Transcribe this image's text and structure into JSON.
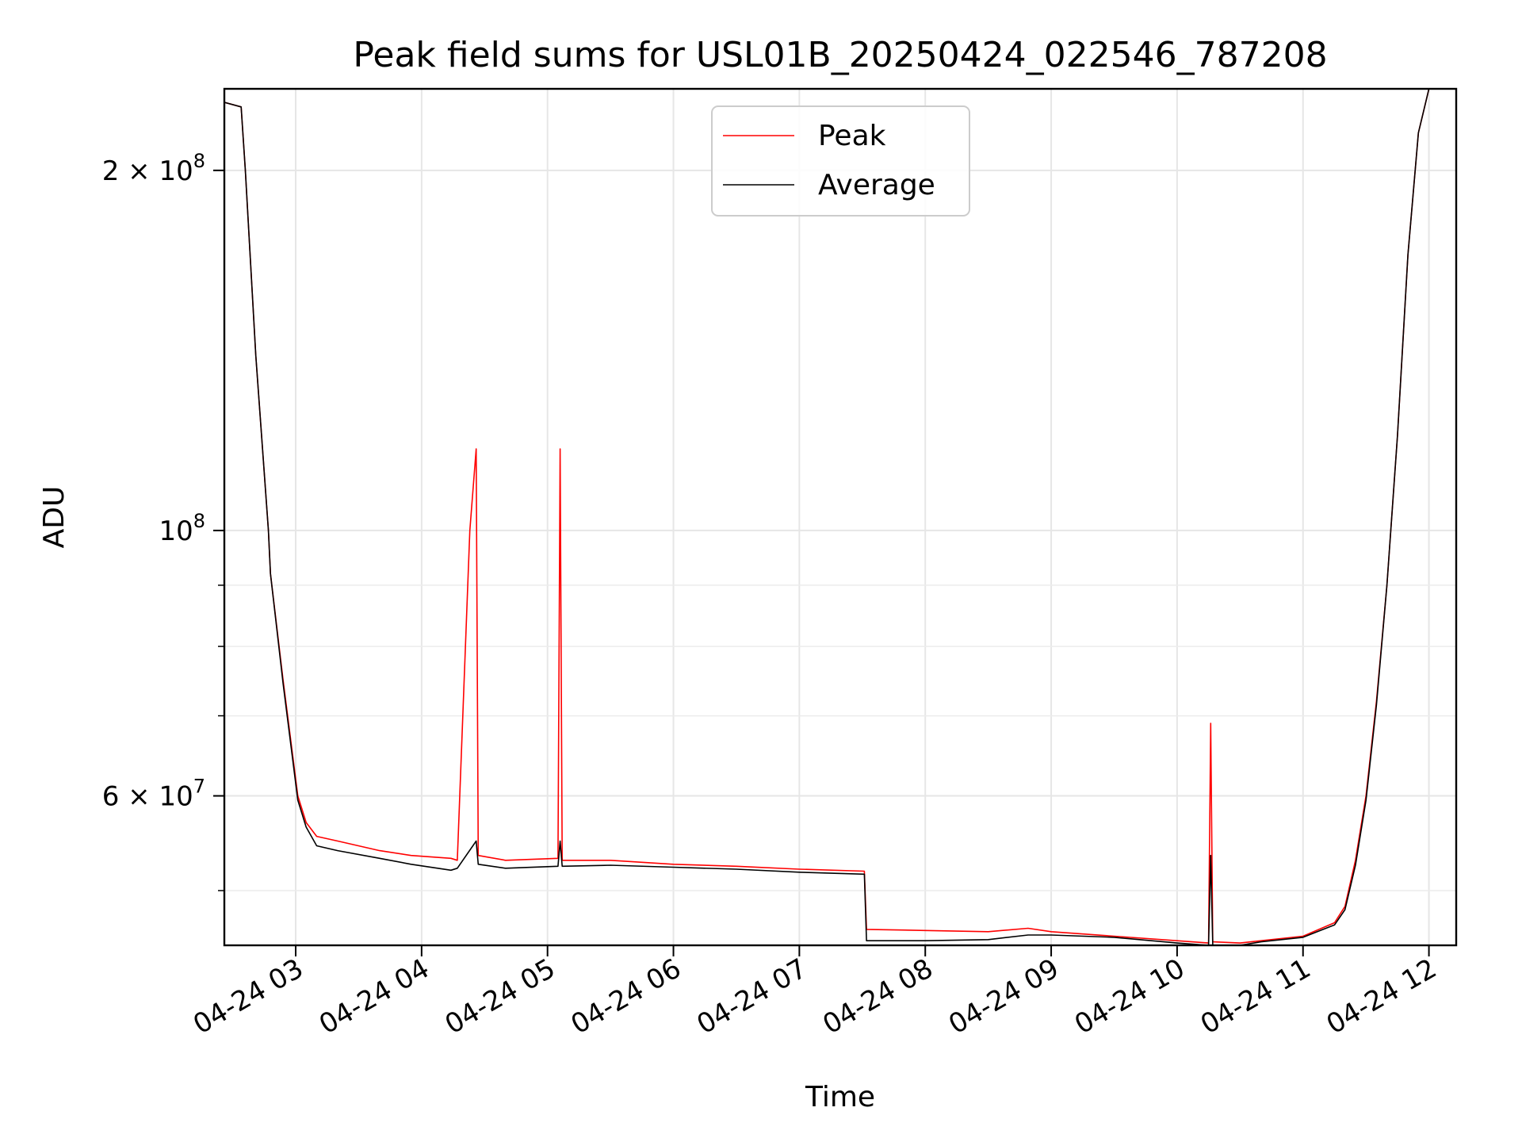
{
  "chart_data": {
    "type": "line",
    "title": "Peak field sums for USL01B_20250424_022546_787208",
    "xlabel": "Time",
    "ylabel": "ADU",
    "yscale": "log",
    "xlim": [
      "2025-04-24 02:26",
      "2025-04-24 12:13"
    ],
    "ylim": [
      45000000,
      234000000
    ],
    "grid": true,
    "legend": "upper center",
    "x_ticks": [
      {
        "t": "2025-04-24 03:00",
        "label": "04-24 03"
      },
      {
        "t": "2025-04-24 04:00",
        "label": "04-24 04"
      },
      {
        "t": "2025-04-24 05:00",
        "label": "04-24 05"
      },
      {
        "t": "2025-04-24 06:00",
        "label": "04-24 06"
      },
      {
        "t": "2025-04-24 07:00",
        "label": "04-24 07"
      },
      {
        "t": "2025-04-24 08:00",
        "label": "04-24 08"
      },
      {
        "t": "2025-04-24 09:00",
        "label": "04-24 09"
      },
      {
        "t": "2025-04-24 10:00",
        "label": "04-24 10"
      },
      {
        "t": "2025-04-24 11:00",
        "label": "04-24 11"
      },
      {
        "t": "2025-04-24 12:00",
        "label": "04-24 12"
      }
    ],
    "y_ticks": [
      {
        "value": 200000000,
        "base": "2 × 10",
        "exp": "8"
      },
      {
        "value": 100000000,
        "base": "10",
        "exp": "8"
      },
      {
        "value": 60000000,
        "base": "6 × 10",
        "exp": "7"
      }
    ],
    "y_minor_ticks": [
      50000000,
      70000000,
      80000000,
      90000000
    ],
    "series": [
      {
        "name": "Peak",
        "color": "#ff0000",
        "points": [
          [
            "2025-04-24 02:26",
            228000000
          ],
          [
            "2025-04-24 02:34",
            226000000
          ],
          [
            "2025-04-24 02:36",
            200000000
          ],
          [
            "2025-04-24 02:41",
            140000000
          ],
          [
            "2025-04-24 02:47",
            100000000
          ],
          [
            "2025-04-24 02:48",
            92000000
          ],
          [
            "2025-04-24 02:54",
            75000000
          ],
          [
            "2025-04-24 03:01",
            60000000
          ],
          [
            "2025-04-24 03:05",
            57000000
          ],
          [
            "2025-04-24 03:10",
            55500000
          ],
          [
            "2025-04-24 03:20",
            55000000
          ],
          [
            "2025-04-24 03:40",
            54000000
          ],
          [
            "2025-04-24 03:55",
            53500000
          ],
          [
            "2025-04-24 04:14",
            53200000
          ],
          [
            "2025-04-24 04:17",
            53000000
          ],
          [
            "2025-04-24 04:23",
            100000000
          ],
          [
            "2025-04-24 04:26",
            117000000
          ],
          [
            "2025-04-24 04:27",
            53500000
          ],
          [
            "2025-04-24 04:40",
            53000000
          ],
          [
            "2025-04-24 05:05",
            53200000
          ],
          [
            "2025-04-24 05:06",
            117000000
          ],
          [
            "2025-04-24 05:07",
            53000000
          ],
          [
            "2025-04-24 05:30",
            53000000
          ],
          [
            "2025-04-24 06:00",
            52600000
          ],
          [
            "2025-04-24 06:30",
            52400000
          ],
          [
            "2025-04-24 07:00",
            52100000
          ],
          [
            "2025-04-24 07:31",
            51900000
          ],
          [
            "2025-04-24 07:32",
            46400000
          ],
          [
            "2025-04-24 08:00",
            46300000
          ],
          [
            "2025-04-24 08:30",
            46200000
          ],
          [
            "2025-04-24 08:49",
            46500000
          ],
          [
            "2025-04-24 09:00",
            46200000
          ],
          [
            "2025-04-24 09:30",
            45800000
          ],
          [
            "2025-04-24 10:00",
            45400000
          ],
          [
            "2025-04-24 10:15",
            45200000
          ],
          [
            "2025-04-24 10:16",
            69000000
          ],
          [
            "2025-04-24 10:17",
            45300000
          ],
          [
            "2025-04-24 10:30",
            45200000
          ],
          [
            "2025-04-24 10:40",
            45400000
          ],
          [
            "2025-04-24 11:00",
            45800000
          ],
          [
            "2025-04-24 11:15",
            47000000
          ],
          [
            "2025-04-24 11:20",
            48500000
          ],
          [
            "2025-04-24 11:25",
            53000000
          ],
          [
            "2025-04-24 11:30",
            60000000
          ],
          [
            "2025-04-24 11:35",
            72000000
          ],
          [
            "2025-04-24 11:40",
            90000000
          ],
          [
            "2025-04-24 11:45",
            120000000
          ],
          [
            "2025-04-24 11:50",
            170000000
          ],
          [
            "2025-04-24 11:55",
            215000000
          ],
          [
            "2025-04-24 12:00",
            234000000
          ]
        ]
      },
      {
        "name": "Average",
        "color": "#000000",
        "points": [
          [
            "2025-04-24 02:26",
            228000000
          ],
          [
            "2025-04-24 02:34",
            226000000
          ],
          [
            "2025-04-24 02:36",
            200000000
          ],
          [
            "2025-04-24 02:41",
            140000000
          ],
          [
            "2025-04-24 02:47",
            100000000
          ],
          [
            "2025-04-24 02:48",
            92000000
          ],
          [
            "2025-04-24 02:54",
            74500000
          ],
          [
            "2025-04-24 03:01",
            59500000
          ],
          [
            "2025-04-24 03:05",
            56500000
          ],
          [
            "2025-04-24 03:10",
            54500000
          ],
          [
            "2025-04-24 03:20",
            54000000
          ],
          [
            "2025-04-24 03:40",
            53200000
          ],
          [
            "2025-04-24 03:55",
            52600000
          ],
          [
            "2025-04-24 04:14",
            52000000
          ],
          [
            "2025-04-24 04:17",
            52200000
          ],
          [
            "2025-04-24 04:26",
            55000000
          ],
          [
            "2025-04-24 04:27",
            52600000
          ],
          [
            "2025-04-24 04:40",
            52200000
          ],
          [
            "2025-04-24 05:05",
            52400000
          ],
          [
            "2025-04-24 05:06",
            55000000
          ],
          [
            "2025-04-24 05:07",
            52400000
          ],
          [
            "2025-04-24 05:30",
            52500000
          ],
          [
            "2025-04-24 06:00",
            52300000
          ],
          [
            "2025-04-24 06:30",
            52100000
          ],
          [
            "2025-04-24 07:00",
            51800000
          ],
          [
            "2025-04-24 07:31",
            51600000
          ],
          [
            "2025-04-24 07:32",
            45400000
          ],
          [
            "2025-04-24 08:00",
            45400000
          ],
          [
            "2025-04-24 08:30",
            45500000
          ],
          [
            "2025-04-24 08:49",
            45900000
          ],
          [
            "2025-04-24 09:00",
            45900000
          ],
          [
            "2025-04-24 09:30",
            45700000
          ],
          [
            "2025-04-24 10:00",
            45200000
          ],
          [
            "2025-04-24 10:15",
            45000000
          ],
          [
            "2025-04-24 10:16",
            53500000
          ],
          [
            "2025-04-24 10:17",
            45000000
          ],
          [
            "2025-04-24 10:30",
            45000000
          ],
          [
            "2025-04-24 10:40",
            45300000
          ],
          [
            "2025-04-24 11:00",
            45700000
          ],
          [
            "2025-04-24 11:15",
            46800000
          ],
          [
            "2025-04-24 11:20",
            48200000
          ],
          [
            "2025-04-24 11:25",
            52500000
          ],
          [
            "2025-04-24 11:30",
            59500000
          ],
          [
            "2025-04-24 11:35",
            71500000
          ],
          [
            "2025-04-24 11:40",
            90000000
          ],
          [
            "2025-04-24 11:45",
            120000000
          ],
          [
            "2025-04-24 11:50",
            170000000
          ],
          [
            "2025-04-24 11:55",
            215000000
          ],
          [
            "2025-04-24 12:00",
            234000000
          ]
        ]
      }
    ]
  }
}
